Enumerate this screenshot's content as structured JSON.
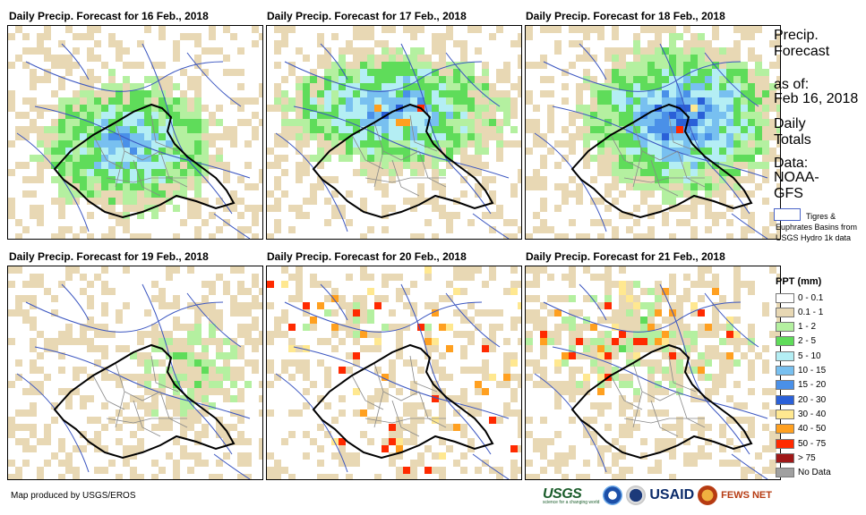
{
  "panels": [
    {
      "title": "Daily Precip. Forecast for 16 Feb., 2018"
    },
    {
      "title": "Daily Precip. Forecast for 17 Feb., 2018"
    },
    {
      "title": "Daily Precip. Forecast for 18 Feb., 2018"
    },
    {
      "title": "Daily Precip. Forecast for 19 Feb., 2018"
    },
    {
      "title": "Daily Precip. Forecast for 20 Feb., 2018"
    },
    {
      "title": "Daily Precip. Forecast for 21 Feb., 2018"
    }
  ],
  "side": {
    "title": "Precip. Forecast",
    "as_of_label": "as of:",
    "as_of_date": "Feb 16, 2018",
    "daily": "Daily Totals",
    "data_label": "Data:",
    "data_source": "NOAA-GFS",
    "basin_note": "Tigres & Euphrates Basins from USGS Hydro 1k data"
  },
  "legend": {
    "title": "PPT (mm)",
    "items": [
      {
        "label": "0 - 0.1",
        "color": "#ffffff"
      },
      {
        "label": "0.1 - 1",
        "color": "#e8d8b4"
      },
      {
        "label": "1 - 2",
        "color": "#b4f0a0"
      },
      {
        "label": "2 - 5",
        "color": "#5fdc5a"
      },
      {
        "label": "5 - 10",
        "color": "#b4eef4"
      },
      {
        "label": "10 - 15",
        "color": "#78c0f0"
      },
      {
        "label": "15 - 20",
        "color": "#4a90e8"
      },
      {
        "label": "20 - 30",
        "color": "#2a60d8"
      },
      {
        "label": "30 - 40",
        "color": "#ffe890"
      },
      {
        "label": "40 - 50",
        "color": "#ffa020"
      },
      {
        "label": "50 - 75",
        "color": "#ff2a00"
      },
      {
        "label": "> 75",
        "color": "#a01818"
      },
      {
        "label": "No Data",
        "color": "#a0a0a0"
      }
    ]
  },
  "footer": "Map produced by USGS/EROS",
  "logos": {
    "usgs": "USGS",
    "usgs_sub": "science for a changing world",
    "usaid": "USAID",
    "fews": "FEWS NET"
  }
}
